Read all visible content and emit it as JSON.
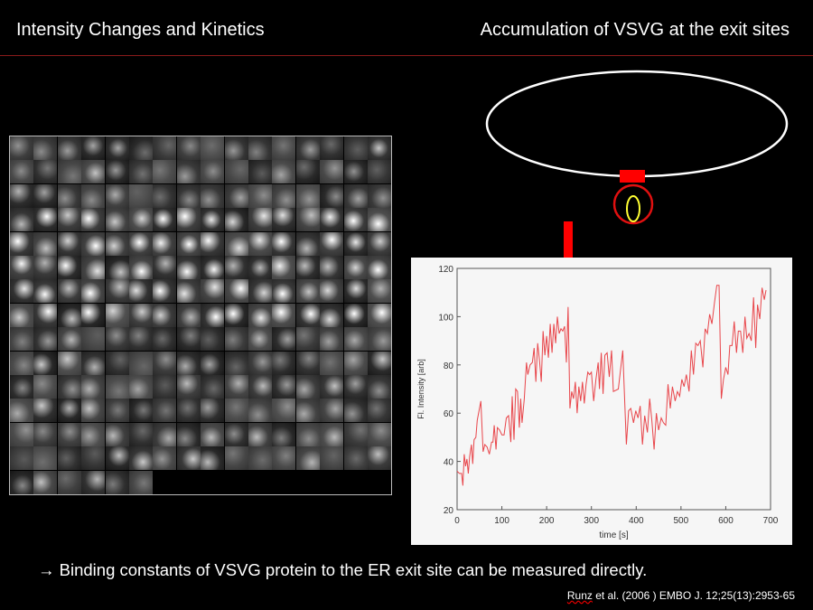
{
  "header": {
    "left_title": "Intensity Changes and Kinetics",
    "right_title": "Accumulation of VSVG at the exit sites"
  },
  "colors": {
    "accent": "#ff0000",
    "rule": "#8a1a1a",
    "trace": "#e8454a",
    "vesicle": "#ffff33"
  },
  "mosaic": {
    "columns": 16,
    "rows": 15,
    "last_row_tiles": 6
  },
  "conclusion": {
    "arrow": "→",
    "text": "Binding constants of VSVG protein to the ER exit site can be measured directly."
  },
  "citation": {
    "author": "Runz",
    "rest": " et al. (2006 ) EMBO J. 12;25(13):2953-65"
  },
  "chart_data": {
    "type": "line",
    "xlabel": "time [s]",
    "ylabel": "Fl. Intensity [arb]",
    "xlim": [
      0,
      700
    ],
    "ylim": [
      20,
      120
    ],
    "xticks": [
      0,
      100,
      200,
      300,
      400,
      500,
      600,
      700
    ],
    "yticks": [
      20,
      40,
      60,
      80,
      100,
      120
    ],
    "annotation": {
      "type": "arrow",
      "x": 250
    },
    "series": [
      {
        "name": "intensity",
        "points": [
          [
            0,
            36
          ],
          [
            5,
            35
          ],
          [
            10,
            35
          ],
          [
            13,
            30
          ],
          [
            16,
            43
          ],
          [
            19,
            38
          ],
          [
            22,
            41
          ],
          [
            25,
            35
          ],
          [
            28,
            42
          ],
          [
            32,
            47
          ],
          [
            35,
            39
          ],
          [
            38,
            49
          ],
          [
            42,
            50
          ],
          [
            45,
            57
          ],
          [
            50,
            62
          ],
          [
            53,
            65
          ],
          [
            58,
            44
          ],
          [
            62,
            47
          ],
          [
            67,
            46
          ],
          [
            72,
            43
          ],
          [
            77,
            48
          ],
          [
            80,
            48
          ],
          [
            83,
            55
          ],
          [
            87,
            45
          ],
          [
            90,
            54
          ],
          [
            95,
            53
          ],
          [
            100,
            51
          ],
          [
            105,
            51
          ],
          [
            110,
            58
          ],
          [
            115,
            59
          ],
          [
            120,
            48
          ],
          [
            123,
            67
          ],
          [
            127,
            49
          ],
          [
            131,
            70
          ],
          [
            135,
            69
          ],
          [
            139,
            54
          ],
          [
            142,
            66
          ],
          [
            145,
            56
          ],
          [
            150,
            66
          ],
          [
            155,
            81
          ],
          [
            158,
            76
          ],
          [
            163,
            80
          ],
          [
            168,
            81
          ],
          [
            172,
            87
          ],
          [
            176,
            73
          ],
          [
            180,
            89
          ],
          [
            184,
            82
          ],
          [
            188,
            73
          ],
          [
            192,
            94
          ],
          [
            196,
            84
          ],
          [
            200,
            92
          ],
          [
            204,
            83
          ],
          [
            208,
            97
          ],
          [
            212,
            85
          ],
          [
            216,
            97
          ],
          [
            220,
            89
          ],
          [
            224,
            100
          ],
          [
            228,
            93
          ],
          [
            232,
            95
          ],
          [
            236,
            94
          ],
          [
            240,
            96
          ],
          [
            244,
            81
          ],
          [
            248,
            104
          ],
          [
            252,
            62
          ],
          [
            256,
            69
          ],
          [
            260,
            66
          ],
          [
            264,
            73
          ],
          [
            268,
            60
          ],
          [
            272,
            71
          ],
          [
            276,
            65
          ],
          [
            280,
            73
          ],
          [
            284,
            64
          ],
          [
            288,
            72
          ],
          [
            292,
            77
          ],
          [
            296,
            76
          ],
          [
            300,
            77
          ],
          [
            305,
            65
          ],
          [
            310,
            74
          ],
          [
            315,
            81
          ],
          [
            318,
            70
          ],
          [
            322,
            85
          ],
          [
            326,
            68
          ],
          [
            330,
            84
          ],
          [
            335,
            85
          ],
          [
            340,
            75
          ],
          [
            345,
            86
          ],
          [
            349,
            69
          ],
          [
            360,
            70
          ],
          [
            370,
            86
          ],
          [
            378,
            47
          ],
          [
            383,
            61
          ],
          [
            388,
            62
          ],
          [
            394,
            56
          ],
          [
            399,
            61
          ],
          [
            404,
            58
          ],
          [
            409,
            63
          ],
          [
            414,
            47
          ],
          [
            419,
            59
          ],
          [
            425,
            52
          ],
          [
            430,
            66
          ],
          [
            435,
            57
          ],
          [
            440,
            45
          ],
          [
            445,
            60
          ],
          [
            450,
            53
          ],
          [
            456,
            58
          ],
          [
            461,
            56
          ],
          [
            466,
            55
          ],
          [
            471,
            72
          ],
          [
            476,
            62
          ],
          [
            481,
            71
          ],
          [
            487,
            65
          ],
          [
            492,
            69
          ],
          [
            497,
            67
          ],
          [
            502,
            74
          ],
          [
            507,
            71
          ],
          [
            512,
            76
          ],
          [
            518,
            69
          ],
          [
            523,
            86
          ],
          [
            528,
            76
          ],
          [
            533,
            89
          ],
          [
            538,
            88
          ],
          [
            543,
            90
          ],
          [
            549,
            79
          ],
          [
            554,
            95
          ],
          [
            559,
            93
          ],
          [
            564,
            101
          ],
          [
            569,
            97
          ],
          [
            575,
            106
          ],
          [
            580,
            113
          ],
          [
            585,
            113
          ],
          [
            590,
            66
          ],
          [
            595,
            74
          ],
          [
            600,
            79
          ],
          [
            605,
            76
          ],
          [
            609,
            88
          ],
          [
            614,
            88
          ],
          [
            619,
            98
          ],
          [
            624,
            85
          ],
          [
            628,
            94
          ],
          [
            633,
            94
          ],
          [
            638,
            85
          ],
          [
            643,
            100
          ],
          [
            647,
            91
          ],
          [
            652,
            93
          ],
          [
            657,
            90
          ],
          [
            662,
            108
          ],
          [
            667,
            87
          ],
          [
            671,
            105
          ],
          [
            676,
            99
          ],
          [
            681,
            112
          ],
          [
            686,
            107
          ],
          [
            690,
            111
          ]
        ]
      }
    ]
  }
}
